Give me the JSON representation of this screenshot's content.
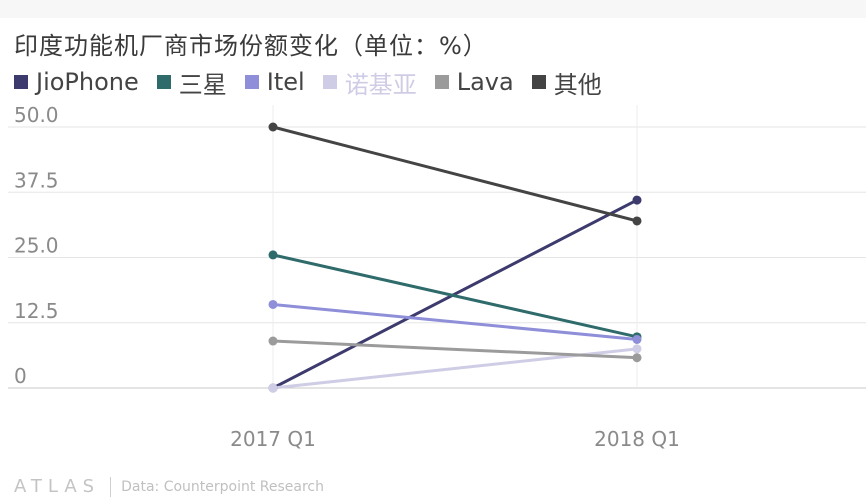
{
  "title": "印度功能机厂商市场份额变化（单位：%）",
  "footer": {
    "logo": "ATLAS",
    "source": "Data: Counterpoint Research"
  },
  "chart_data": {
    "type": "line",
    "title": "印度功能机厂商市场份额变化（单位：%）",
    "xlabel": "",
    "ylabel": "",
    "categories": [
      "2017 Q1",
      "2018 Q1"
    ],
    "ylim": [
      0,
      50
    ],
    "yticks": [
      "50.0",
      "37.5",
      "25.0",
      "12.5",
      "0"
    ],
    "grid": true,
    "legend_position": "top-left",
    "series": [
      {
        "name": "JioPhone",
        "color": "#3d3a6e",
        "values": [
          0,
          36
        ]
      },
      {
        "name": "三星",
        "color": "#2f6b6b",
        "values": [
          25.5,
          9.8
        ]
      },
      {
        "name": "Itel",
        "color": "#8e8fd8",
        "values": [
          16,
          9.3
        ]
      },
      {
        "name": "诺基亚",
        "color": "#cfcde6",
        "values": [
          0,
          7.5
        ]
      },
      {
        "name": "Lava",
        "color": "#9b9b9b",
        "values": [
          9,
          5.8
        ]
      },
      {
        "name": "其他",
        "color": "#444444",
        "values": [
          50,
          32
        ]
      }
    ]
  }
}
